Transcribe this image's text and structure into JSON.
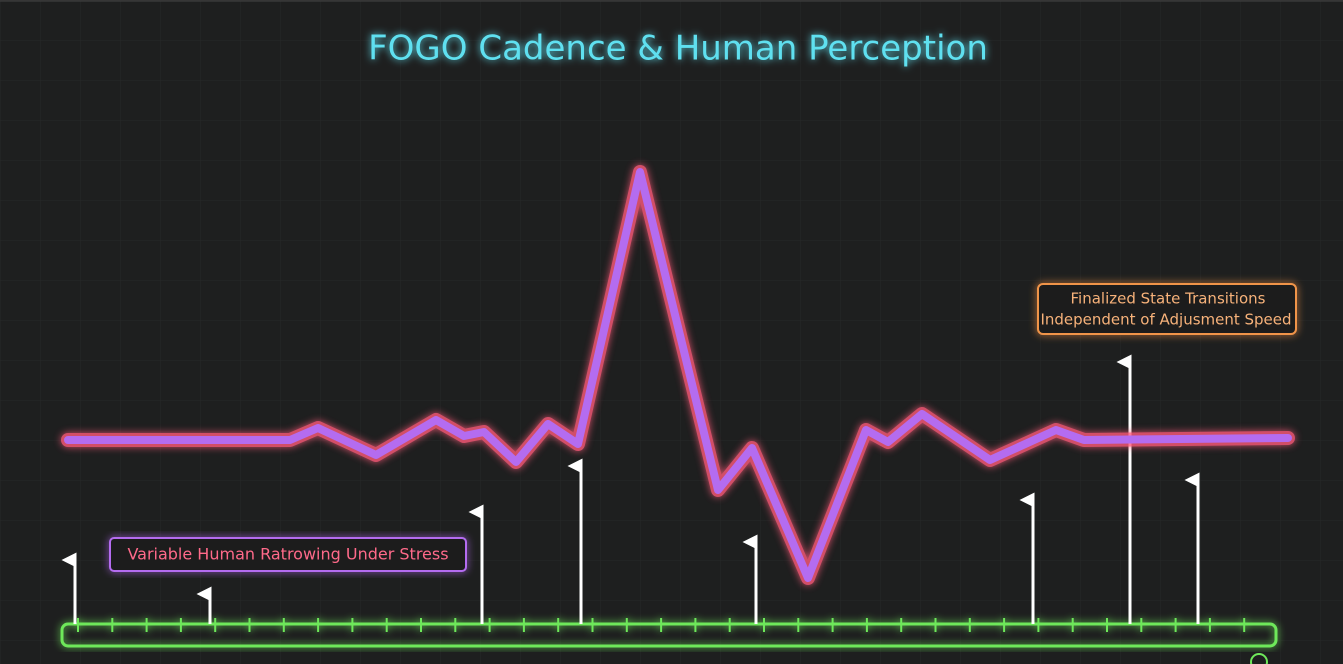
{
  "header": {
    "title": "FOGO Cadence & Human Perception"
  },
  "annotations": [
    {
      "lines": [
        "Variable Human Ratrowing Under Stress"
      ]
    },
    {
      "lines": [
        "Finalized State Transitions",
        "Independent of Adjusment Speed"
      ]
    }
  ]
}
